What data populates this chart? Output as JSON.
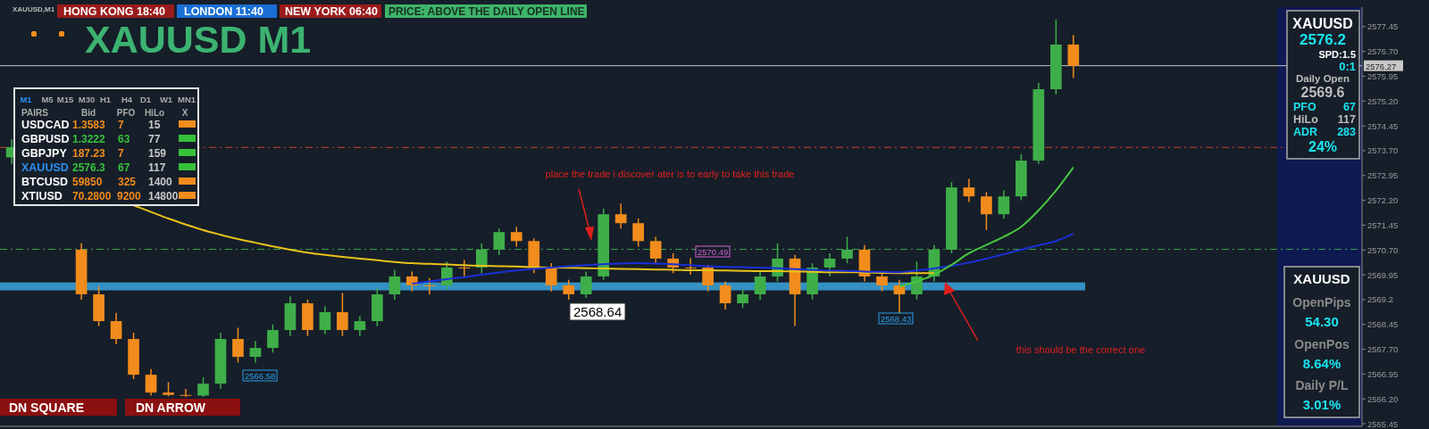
{
  "chart_data": {
    "type": "candlestick",
    "title": "XAUUSD M1",
    "categories": [
      null,
      null,
      null,
      null,
      null,
      null,
      null,
      null,
      null,
      null,
      null,
      null,
      null,
      null,
      null,
      null,
      null,
      null,
      null,
      null,
      null,
      null,
      null,
      null,
      null,
      null,
      null,
      null,
      null,
      null,
      null,
      null,
      null,
      null,
      null,
      null,
      null,
      null,
      null,
      null,
      null,
      null,
      null,
      null,
      null,
      null,
      null,
      null,
      null,
      null,
      null,
      null,
      null,
      null,
      null,
      null,
      null,
      null,
      null,
      null,
      null,
      null
    ],
    "ohlc": [
      [
        2573.5,
        2574.05,
        2573.3,
        2573.81
      ],
      null,
      null,
      null,
      [
        2570.71,
        2570.9,
        2569.2,
        2569.36
      ],
      [
        2569.36,
        2569.6,
        2568.4,
        2568.55
      ],
      [
        2568.55,
        2568.8,
        2567.85,
        2568.01
      ],
      [
        2568.01,
        2568.2,
        2566.8,
        2566.93
      ],
      [
        2566.93,
        2567.1,
        2566.3,
        2566.39
      ],
      [
        2566.39,
        2566.7,
        2566.28,
        2566.32
      ],
      [
        2566.32,
        2566.5,
        2566.25,
        2566.3
      ],
      [
        2566.3,
        2566.85,
        2566.26,
        2566.66
      ],
      [
        2566.66,
        2568.2,
        2566.5,
        2568.01
      ],
      [
        2568.01,
        2568.35,
        2567.3,
        2567.47
      ],
      [
        2567.47,
        2567.95,
        2567.3,
        2567.74
      ],
      [
        2567.74,
        2568.45,
        2567.6,
        2568.28
      ],
      [
        2568.28,
        2569.3,
        2568.1,
        2569.09
      ],
      [
        2569.09,
        2569.2,
        2568.1,
        2568.28
      ],
      [
        2568.28,
        2569.0,
        2568.15,
        2568.82
      ],
      [
        2568.82,
        2569.4,
        2568.1,
        2568.28
      ],
      [
        2568.28,
        2568.7,
        2568.1,
        2568.55
      ],
      [
        2568.55,
        2569.55,
        2568.4,
        2569.36
      ],
      [
        2569.36,
        2570.1,
        2569.2,
        2569.9
      ],
      [
        2569.9,
        2570.05,
        2569.45,
        2569.63
      ],
      [
        2569.63,
        2569.85,
        2569.35,
        2569.63
      ],
      [
        2569.63,
        2570.35,
        2569.5,
        2570.17
      ],
      [
        2570.17,
        2570.4,
        2569.9,
        2570.17
      ],
      [
        2570.17,
        2570.9,
        2570.0,
        2570.71
      ],
      [
        2570.71,
        2571.35,
        2570.55,
        2571.24
      ],
      [
        2571.24,
        2571.4,
        2570.8,
        2570.97
      ],
      [
        2570.97,
        2571.05,
        2570.0,
        2570.17
      ],
      [
        2570.17,
        2570.3,
        2569.45,
        2569.63
      ],
      [
        2569.63,
        2569.8,
        2569.2,
        2569.36
      ],
      [
        2569.36,
        2570.05,
        2569.25,
        2569.9
      ],
      [
        2569.9,
        2571.95,
        2569.8,
        2571.78
      ],
      [
        2571.78,
        2572.1,
        2571.35,
        2571.51
      ],
      [
        2571.51,
        2571.65,
        2570.8,
        2570.97
      ],
      [
        2570.97,
        2571.1,
        2570.3,
        2570.44
      ],
      [
        2570.44,
        2570.6,
        2570.0,
        2570.17
      ],
      [
        2570.17,
        2570.45,
        2569.95,
        2570.17
      ],
      [
        2570.17,
        2570.25,
        2569.45,
        2569.63
      ],
      [
        2569.63,
        2569.75,
        2568.9,
        2569.09
      ],
      [
        2569.09,
        2569.5,
        2568.95,
        2569.36
      ],
      [
        2569.36,
        2570.05,
        2569.2,
        2569.9
      ],
      [
        2569.9,
        2570.9,
        2569.75,
        2570.44
      ],
      [
        2570.44,
        2570.55,
        2568.4,
        2569.36
      ],
      [
        2569.36,
        2570.3,
        2569.2,
        2570.17
      ],
      [
        2570.17,
        2570.6,
        2569.9,
        2570.44
      ],
      [
        2570.44,
        2571.1,
        2570.3,
        2570.71
      ],
      [
        2570.71,
        2570.85,
        2569.75,
        2569.9
      ],
      [
        2569.9,
        2570.05,
        2569.45,
        2569.63
      ],
      [
        2569.63,
        2569.8,
        2568.75,
        2569.36
      ],
      [
        2569.36,
        2570.35,
        2569.2,
        2569.9
      ],
      [
        2569.9,
        2570.85,
        2569.75,
        2570.71
      ],
      [
        2570.71,
        2572.75,
        2570.6,
        2572.59
      ],
      [
        2572.59,
        2572.85,
        2572.15,
        2572.32
      ],
      [
        2572.32,
        2572.45,
        2571.3,
        2571.78
      ],
      [
        2571.78,
        2572.5,
        2571.65,
        2572.32
      ],
      [
        2572.32,
        2573.6,
        2572.2,
        2573.4
      ],
      [
        2573.4,
        2575.75,
        2573.3,
        2575.56
      ],
      [
        2575.56,
        2577.67,
        2575.4,
        2576.91
      ],
      [
        2576.91,
        2577.2,
        2575.9,
        2576.27
      ]
    ],
    "colors": [
      "#3fae49",
      null,
      null,
      null,
      "#f28c1c",
      "#f28c1c",
      "#f28c1c",
      "#f28c1c",
      "#f28c1c",
      "#f28c1c",
      "#f28c1c",
      "#3fae49",
      "#3fae49",
      "#f28c1c",
      "#3fae49",
      "#3fae49",
      "#3fae49",
      "#f28c1c",
      "#3fae49",
      "#f28c1c",
      "#3fae49",
      "#3fae49",
      "#3fae49",
      "#f28c1c",
      "#f28c1c",
      "#3fae49",
      "#f28c1c",
      "#3fae49",
      "#3fae49",
      "#f28c1c",
      "#f28c1c",
      "#f28c1c",
      "#f28c1c",
      "#3fae49",
      "#3fae49",
      "#f28c1c",
      "#f28c1c",
      "#f28c1c",
      "#f28c1c",
      "#f28c1c",
      "#f28c1c",
      "#f28c1c",
      "#3fae49",
      "#3fae49",
      "#3fae49",
      "#f28c1c",
      "#3fae49",
      "#3fae49",
      "#3fae49",
      "#f28c1c",
      "#f28c1c",
      "#f28c1c",
      "#3fae49",
      "#3fae49",
      "#3fae49",
      "#f28c1c",
      "#f28c1c",
      "#3fae49",
      "#3fae49",
      "#3fae49",
      "#3fae49",
      "#f28c1c"
    ],
    "series": [
      {
        "type": "line",
        "color": "#e8c21a",
        "values": [
          null,
          null,
          null,
          null,
          null,
          null,
          null,
          2572.05,
          2571.85,
          2571.65,
          2571.47,
          2571.3,
          2571.16,
          2571.03,
          2570.92,
          2570.81,
          2570.71,
          2570.62,
          2570.55,
          2570.49,
          2570.44,
          2570.39,
          2570.34,
          2570.3,
          2570.28,
          2570.26,
          2570.24,
          2570.22,
          2570.21,
          2570.2,
          2570.18,
          2570.17,
          2570.16,
          2570.15,
          2570.14,
          2570.13,
          2570.12,
          2570.11,
          2570.1,
          2570.09,
          2570.09,
          2570.08,
          2570.07,
          2570.06,
          2570.06,
          2570.05,
          2570.04,
          2570.03,
          2570.03,
          2570.02,
          2570.01,
          2570.0,
          2570.0,
          2570.0,
          null,
          null,
          null,
          null,
          null,
          null,
          null,
          null
        ]
      },
      {
        "type": "line",
        "color": "#1a2fd6",
        "values": [
          null,
          null,
          null,
          null,
          null,
          null,
          null,
          null,
          null,
          null,
          null,
          null,
          null,
          null,
          null,
          null,
          null,
          null,
          null,
          null,
          null,
          null,
          null,
          2569.68,
          2569.75,
          2569.82,
          2569.88,
          2569.95,
          2570.02,
          2570.08,
          2570.13,
          2570.17,
          2570.21,
          2570.24,
          2570.27,
          2570.29,
          2570.3,
          2570.29,
          2570.27,
          2570.24,
          2570.21,
          2570.19,
          2570.18,
          2570.17,
          2570.15,
          2570.12,
          2570.1,
          2570.08,
          2570.07,
          2570.05,
          2570.04,
          2570.03,
          2570.08,
          2570.14,
          2570.22,
          2570.32,
          2570.44,
          2570.57,
          2570.71,
          2570.84,
          2570.97,
          2571.19
        ]
      },
      {
        "type": "line",
        "color": "#47c83e",
        "values": [
          null,
          null,
          null,
          null,
          null,
          null,
          null,
          null,
          null,
          null,
          null,
          null,
          null,
          null,
          null,
          null,
          null,
          null,
          null,
          null,
          null,
          null,
          null,
          null,
          null,
          null,
          null,
          null,
          null,
          null,
          null,
          null,
          null,
          null,
          null,
          null,
          null,
          null,
          null,
          null,
          null,
          null,
          null,
          null,
          null,
          null,
          null,
          null,
          null,
          null,
          null,
          2569.6,
          2569.75,
          2569.95,
          2570.25,
          2570.6,
          2570.85,
          2571.1,
          2571.4,
          2571.9,
          2572.5,
          2573.2
        ]
      }
    ],
    "ylim": [
      2565.37,
      2578.04
    ],
    "yticks": [
      2565.45,
      {
        "value": 2566.2,
        "label": "2566.20"
      },
      2566.95,
      {
        "value": 2567.7,
        "label": "2567.70"
      },
      2568.45,
      2569.2,
      2569.95,
      {
        "value": 2570.7,
        "label": "2570.70"
      },
      2571.45,
      {
        "value": 2572.2,
        "label": "2572.20"
      },
      2572.95,
      {
        "value": 2573.7,
        "label": "2573.70"
      },
      2574.45,
      {
        "value": 2575.2,
        "label": "2575.20"
      },
      2575.95,
      {
        "value": 2576.7,
        "label": "2576.70"
      },
      2577.45
    ],
    "tick_labels": "y",
    "ref_lines": [
      {
        "axis": "y",
        "value": 2576.27,
        "label": "2576.27",
        "color": "#c8c8c8",
        "line_style": "solid"
      },
      {
        "axis": "y",
        "value": 2573.8,
        "color": "#c8442a",
        "line_style": "dashed"
      },
      {
        "axis": "y",
        "value": 2570.72,
        "color": "#3aa64a",
        "line_style": "dashed"
      }
    ],
    "bands": [
      {
        "axis": "y",
        "from": 2569.48,
        "to": 2569.72,
        "color": "#3aa6dd"
      }
    ],
    "annotations": [
      "XAUUSD,M1",
      "HONG KONG  18:40",
      "LONDON  11:40",
      "NEW YORK  06:40",
      "PRICE: ABOVE THE DAILY OPEN LINE",
      "M1",
      "M5",
      "M15",
      "M30",
      "H1",
      "H4",
      "D1",
      "W1",
      "MN1",
      "PAIRS",
      "Bid",
      "PFO",
      "HiLo",
      "X",
      "USDCAD",
      "1.3583",
      "7",
      "15",
      "GBPUSD",
      "1.3222",
      "63",
      "77",
      "GBPJPY",
      "187.23",
      "7",
      "159",
      "XAUUSD",
      "2576.3",
      "67",
      "117",
      "BTCUSD",
      "59850",
      "325",
      "1400",
      "XTIUSD",
      "70.2800",
      "9200",
      "14800",
      "XAUUSD",
      "2576.2",
      "SPD:1.5",
      "0:1",
      "Daily Open",
      "2569.6",
      "PFO",
      "67",
      "HiLo",
      "117",
      "ADR",
      "283",
      "24%",
      "XAUUSD",
      "OpenPips",
      "54.30",
      "OpenPos",
      "8.64%",
      "Daily P/L",
      "3.01%",
      "place the trade i discover ater is to early to take this trade",
      "this should be the correct one",
      "DN SQUARE",
      "DN ARROW",
      "2568.64",
      "2566.58",
      "2570.49",
      "2568.43"
    ]
  }
}
